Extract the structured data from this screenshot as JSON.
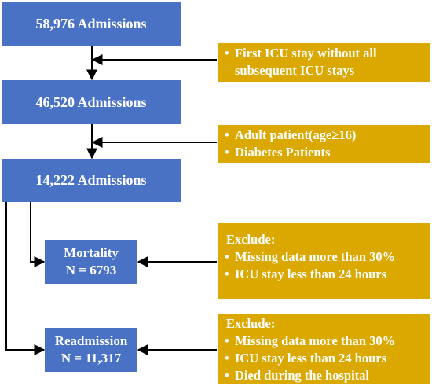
{
  "step1": "58,976 Admissions",
  "step2": "46,520 Admissions",
  "step3": "14,222 Admissions",
  "filter1": [
    "First ICU stay without all subsequent ICU stays"
  ],
  "filter2": [
    "Adult patient(age≥16)",
    "Diabetes Patients"
  ],
  "mortality": {
    "title": "Mortality",
    "n": "N = 6793"
  },
  "readmission": {
    "title": "Readmission",
    "n": "N = 11,317"
  },
  "exclude_mortality": {
    "header": "Exclude:",
    "items": [
      "Missing data more than 30%",
      "ICU stay less than 24 hours"
    ]
  },
  "exclude_readmission": {
    "header": "Exclude:",
    "items": [
      "Missing data more than 30%",
      "ICU stay less than 24 hours",
      "Died during the hospital"
    ]
  },
  "colors": {
    "blue": "#4a72c4",
    "gold": "#dba800",
    "line": "#000000"
  }
}
